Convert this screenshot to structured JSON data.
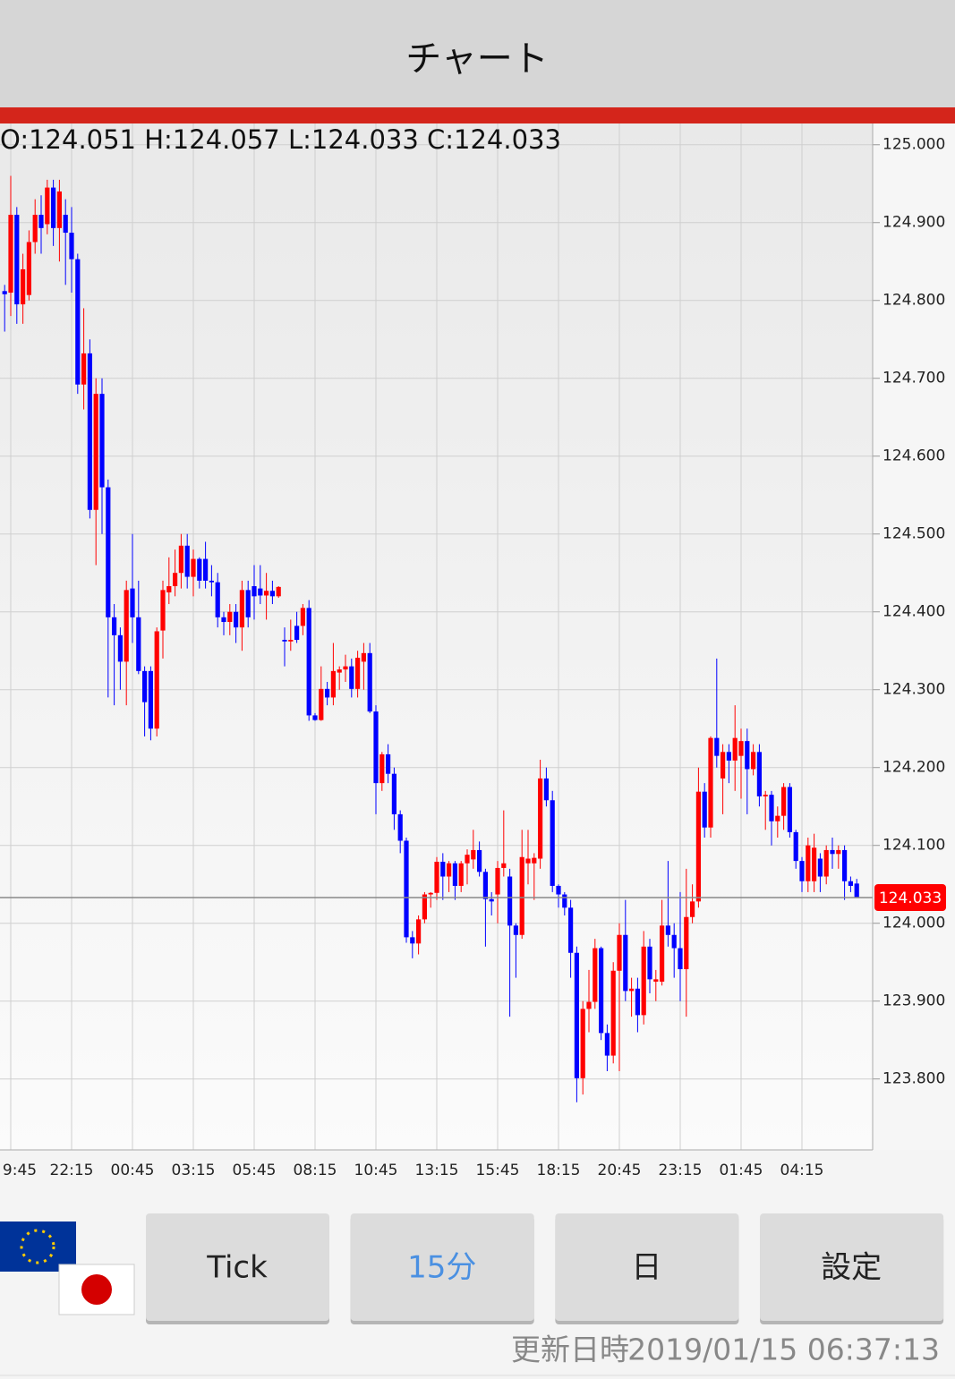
{
  "header": {
    "title": "チャート"
  },
  "chart_data": {
    "type": "candlestick",
    "ohlc_label": "O:124.051 H:124.057 L:124.033 C:124.033",
    "up_color": "#ff0000",
    "down_color": "#0000ff",
    "ylim": [
      123.71,
      125.025
    ],
    "yticks": [
      {
        "value": 123.8,
        "label": "123.800"
      },
      {
        "value": 123.9,
        "label": "123.900"
      },
      {
        "value": 124.0,
        "label": "124.000"
      },
      {
        "value": 124.1,
        "label": "124.100"
      },
      {
        "value": 124.2,
        "label": "124.200"
      },
      {
        "value": 124.3,
        "label": "124.300"
      },
      {
        "value": 124.4,
        "label": "124.400"
      },
      {
        "value": 124.5,
        "label": "124.500"
      },
      {
        "value": 124.6,
        "label": "124.600"
      },
      {
        "value": 124.7,
        "label": "124.700"
      },
      {
        "value": 124.8,
        "label": "124.800"
      },
      {
        "value": 124.9,
        "label": "124.900"
      },
      {
        "value": 125.0,
        "label": "125.000"
      }
    ],
    "grid": true,
    "last_price": {
      "value": 124.033,
      "label": "124.033",
      "color": "#ff0000"
    },
    "categories": [
      null,
      "9:45",
      null,
      null,
      null,
      null,
      null,
      null,
      null,
      null,
      null,
      "22:15",
      null,
      null,
      null,
      null,
      null,
      null,
      null,
      null,
      null,
      "00:45",
      null,
      null,
      null,
      null,
      null,
      null,
      null,
      null,
      null,
      "03:15",
      null,
      null,
      null,
      null,
      null,
      null,
      null,
      null,
      null,
      "05:45",
      null,
      null,
      null,
      null,
      null,
      null,
      null,
      null,
      null,
      "08:15",
      null,
      null,
      null,
      null,
      null,
      null,
      null,
      null,
      null,
      "10:45",
      null,
      null,
      null,
      null,
      null,
      null,
      null,
      null,
      null,
      "13:15",
      null,
      null,
      null,
      null,
      null,
      null,
      null,
      null,
      null,
      "15:45",
      null,
      null,
      null,
      null,
      null,
      null,
      null,
      null,
      null,
      "18:15",
      null,
      null,
      null,
      null,
      null,
      null,
      null,
      null,
      null,
      "20:45",
      null,
      null,
      null,
      null,
      null,
      null,
      null,
      null,
      null,
      "23:15",
      null,
      null,
      null,
      null,
      null,
      null,
      null,
      null,
      null,
      "01:45",
      null,
      null,
      null,
      null,
      null,
      null,
      null,
      null,
      null,
      "04:15",
      null,
      null,
      null,
      null,
      null,
      null,
      null,
      null,
      null
    ],
    "candles": [
      [
        124.812,
        124.82,
        124.76,
        124.808
      ],
      [
        124.81,
        124.96,
        124.78,
        124.91
      ],
      [
        124.91,
        124.92,
        124.77,
        124.795
      ],
      [
        124.795,
        124.86,
        124.77,
        124.84
      ],
      [
        124.807,
        124.89,
        124.8,
        124.875
      ],
      [
        124.875,
        124.93,
        124.86,
        124.91
      ],
      [
        124.91,
        124.935,
        124.86,
        124.893
      ],
      [
        124.898,
        124.955,
        124.885,
        124.945
      ],
      [
        124.945,
        124.955,
        124.87,
        124.893
      ],
      [
        124.893,
        124.955,
        124.85,
        124.94
      ],
      [
        124.91,
        124.93,
        124.82,
        124.887
      ],
      [
        124.887,
        124.92,
        124.81,
        124.853
      ],
      [
        124.853,
        124.86,
        124.68,
        124.692
      ],
      [
        124.692,
        124.79,
        124.66,
        124.732
      ],
      [
        124.732,
        124.75,
        124.52,
        124.531
      ],
      [
        124.531,
        124.7,
        124.46,
        124.68
      ],
      [
        124.68,
        124.7,
        124.5,
        124.56
      ],
      [
        124.56,
        124.57,
        124.29,
        124.393
      ],
      [
        124.393,
        124.41,
        124.28,
        124.37
      ],
      [
        124.37,
        124.38,
        124.3,
        124.336
      ],
      [
        124.336,
        124.44,
        124.28,
        124.428
      ],
      [
        124.43,
        124.5,
        124.36,
        124.393
      ],
      [
        124.393,
        124.44,
        124.32,
        124.324
      ],
      [
        124.324,
        124.33,
        124.24,
        124.284
      ],
      [
        124.324,
        124.33,
        124.235,
        124.25
      ],
      [
        124.25,
        124.38,
        124.24,
        124.375
      ],
      [
        124.376,
        124.44,
        124.34,
        124.428
      ],
      [
        124.425,
        124.47,
        124.41,
        124.433
      ],
      [
        124.433,
        124.48,
        124.42,
        124.45
      ],
      [
        124.45,
        124.5,
        124.43,
        124.485
      ],
      [
        124.485,
        124.5,
        124.43,
        124.445
      ],
      [
        124.445,
        124.48,
        124.42,
        124.468
      ],
      [
        124.468,
        124.47,
        124.43,
        124.44
      ],
      [
        124.468,
        124.49,
        124.43,
        124.44
      ],
      [
        124.44,
        124.46,
        124.42,
        124.438
      ],
      [
        124.438,
        124.45,
        124.38,
        124.393
      ],
      [
        124.393,
        124.4,
        124.37,
        124.387
      ],
      [
        124.387,
        124.41,
        124.37,
        124.4
      ],
      [
        124.4,
        124.41,
        124.36,
        124.38
      ],
      [
        124.38,
        124.44,
        124.35,
        124.428
      ],
      [
        124.428,
        124.44,
        124.38,
        124.393
      ],
      [
        124.433,
        124.46,
        124.39,
        124.42
      ],
      [
        124.43,
        124.46,
        124.41,
        124.421
      ],
      [
        124.421,
        124.45,
        124.39,
        124.427
      ],
      [
        124.427,
        124.44,
        124.41,
        124.42
      ],
      [
        124.42,
        124.433,
        124.418,
        124.432
      ],
      [
        124.364,
        124.38,
        124.33,
        124.362
      ],
      [
        124.362,
        124.39,
        124.35,
        124.364
      ],
      [
        124.382,
        124.4,
        124.36,
        124.364
      ],
      [
        124.382,
        124.41,
        124.37,
        124.405
      ],
      [
        124.405,
        124.415,
        124.26,
        124.267
      ],
      [
        124.267,
        124.27,
        124.26,
        124.261
      ],
      [
        124.261,
        124.33,
        124.26,
        124.301
      ],
      [
        124.301,
        124.31,
        124.28,
        124.29
      ],
      [
        124.29,
        124.36,
        124.28,
        124.324
      ],
      [
        124.322,
        124.33,
        124.3,
        124.326
      ],
      [
        124.326,
        124.345,
        124.31,
        124.33
      ],
      [
        124.33,
        124.34,
        124.29,
        124.301
      ],
      [
        124.301,
        124.35,
        124.29,
        124.341
      ],
      [
        124.336,
        124.36,
        124.3,
        124.347
      ],
      [
        124.347,
        124.36,
        124.27,
        124.272
      ],
      [
        124.272,
        124.28,
        124.14,
        124.18
      ],
      [
        124.18,
        124.22,
        124.17,
        124.217
      ],
      [
        124.217,
        124.23,
        124.18,
        124.192
      ],
      [
        124.192,
        124.2,
        124.12,
        124.14
      ],
      [
        124.14,
        124.145,
        124.09,
        124.106
      ],
      [
        124.106,
        124.11,
        123.975,
        123.982
      ],
      [
        123.982,
        123.99,
        123.955,
        123.974
      ],
      [
        123.974,
        124.01,
        123.96,
        124.005
      ],
      [
        124.005,
        124.04,
        124.0,
        124.037
      ],
      [
        124.037,
        124.04,
        124.02,
        124.039
      ],
      [
        124.039,
        124.085,
        124.03,
        124.079
      ],
      [
        124.079,
        124.09,
        124.03,
        124.06
      ],
      [
        124.06,
        124.08,
        124.04,
        124.077
      ],
      [
        124.077,
        124.08,
        124.03,
        124.048
      ],
      [
        124.048,
        124.08,
        124.04,
        124.077
      ],
      [
        124.077,
        124.095,
        124.05,
        124.088
      ],
      [
        124.082,
        124.12,
        124.07,
        124.094
      ],
      [
        124.094,
        124.105,
        124.06,
        124.066
      ],
      [
        124.066,
        124.07,
        123.97,
        124.031
      ],
      [
        124.031,
        124.04,
        124.01,
        124.028
      ],
      [
        124.037,
        124.08,
        124.0,
        124.071
      ],
      [
        124.071,
        124.145,
        124.06,
        124.077
      ],
      [
        124.06,
        124.07,
        123.88,
        123.997
      ],
      [
        123.997,
        124.0,
        123.93,
        123.985
      ],
      [
        123.985,
        124.12,
        123.98,
        124.085
      ],
      [
        124.077,
        124.12,
        124.05,
        124.083
      ],
      [
        124.077,
        124.09,
        124.03,
        124.084
      ],
      [
        124.083,
        124.21,
        124.07,
        124.186
      ],
      [
        124.186,
        124.2,
        124.15,
        124.158
      ],
      [
        124.158,
        124.17,
        124.04,
        124.048
      ],
      [
        124.048,
        124.05,
        124.02,
        124.037
      ],
      [
        124.037,
        124.04,
        124.01,
        124.02
      ],
      [
        124.02,
        124.03,
        123.93,
        123.962
      ],
      [
        123.962,
        123.97,
        123.77,
        123.801
      ],
      [
        123.801,
        123.9,
        123.78,
        123.89
      ],
      [
        123.89,
        123.94,
        123.86,
        123.899
      ],
      [
        123.899,
        123.98,
        123.89,
        123.968
      ],
      [
        123.968,
        123.97,
        123.85,
        123.859
      ],
      [
        123.859,
        123.87,
        123.81,
        123.83
      ],
      [
        123.83,
        123.95,
        123.82,
        123.939
      ],
      [
        123.939,
        124.0,
        123.81,
        123.985
      ],
      [
        123.985,
        124.03,
        123.9,
        123.913
      ],
      [
        123.913,
        123.93,
        123.88,
        123.916
      ],
      [
        123.916,
        123.93,
        123.86,
        123.882
      ],
      [
        123.882,
        123.99,
        123.87,
        123.97
      ],
      [
        123.97,
        123.98,
        123.91,
        123.928
      ],
      [
        123.925,
        123.94,
        123.9,
        123.928
      ],
      [
        123.925,
        124.03,
        123.92,
        123.997
      ],
      [
        123.997,
        124.08,
        123.97,
        123.985
      ],
      [
        123.985,
        124.0,
        123.93,
        123.968
      ],
      [
        123.968,
        124.04,
        123.9,
        123.941
      ],
      [
        123.941,
        124.07,
        123.88,
        124.008
      ],
      [
        124.008,
        124.05,
        124.0,
        124.028
      ],
      [
        124.028,
        124.2,
        124.02,
        124.169
      ],
      [
        124.169,
        124.18,
        124.11,
        124.123
      ],
      [
        124.123,
        124.24,
        124.11,
        124.238
      ],
      [
        124.238,
        124.34,
        124.2,
        124.215
      ],
      [
        124.186,
        124.23,
        124.14,
        124.22
      ],
      [
        124.22,
        124.23,
        124.18,
        124.209
      ],
      [
        124.209,
        124.28,
        124.17,
        124.238
      ],
      [
        124.215,
        124.25,
        124.16,
        124.234
      ],
      [
        124.234,
        124.25,
        124.14,
        124.198
      ],
      [
        124.198,
        124.23,
        124.19,
        124.22
      ],
      [
        124.22,
        124.23,
        124.15,
        124.163
      ],
      [
        124.163,
        124.17,
        124.12,
        124.165
      ],
      [
        124.165,
        124.17,
        124.1,
        124.131
      ],
      [
        124.131,
        124.15,
        124.11,
        124.138
      ],
      [
        124.138,
        124.18,
        124.12,
        124.175
      ],
      [
        124.175,
        124.18,
        124.11,
        124.117
      ],
      [
        124.117,
        124.12,
        124.07,
        124.08
      ],
      [
        124.08,
        124.085,
        124.04,
        124.054
      ],
      [
        124.054,
        124.11,
        124.04,
        124.1
      ],
      [
        124.054,
        124.115,
        124.04,
        124.097
      ],
      [
        124.083,
        124.09,
        124.04,
        124.06
      ],
      [
        124.06,
        124.1,
        124.05,
        124.094
      ],
      [
        124.094,
        124.11,
        124.07,
        124.089
      ],
      [
        124.089,
        124.1,
        124.07,
        124.094
      ],
      [
        124.094,
        124.1,
        124.03,
        124.054
      ],
      [
        124.054,
        124.06,
        124.04,
        124.048
      ],
      [
        124.051,
        124.057,
        124.033,
        124.033
      ]
    ]
  },
  "buttons": [
    {
      "label": "Tick",
      "color": "#222222"
    },
    {
      "label": "15分",
      "color": "#4a90e2"
    },
    {
      "label": "日",
      "color": "#222222"
    },
    {
      "label": "設定",
      "color": "#222222"
    }
  ],
  "footer": {
    "update_label": "更新日時",
    "update_time": "2019/01/15 06:37:13"
  }
}
